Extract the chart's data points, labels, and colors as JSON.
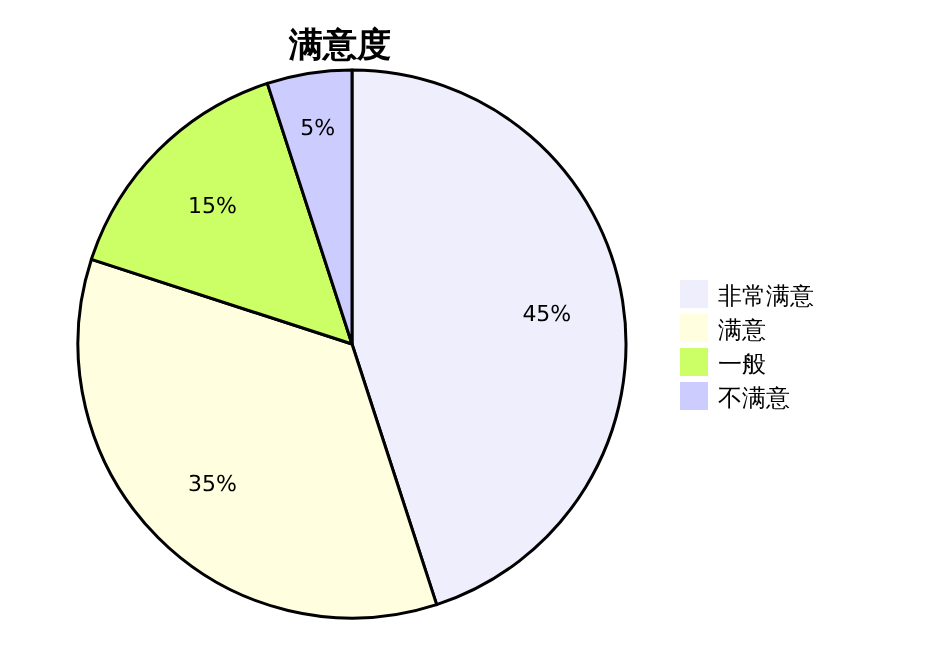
{
  "chart_data": {
    "type": "pie",
    "title": "满意度",
    "categories": [
      "非常满意",
      "满意",
      "一般",
      "不满意"
    ],
    "values": [
      45,
      35,
      15,
      5
    ],
    "colors": [
      "#eeeefc",
      "#ffffe0",
      "#ccff66",
      "#ccccff"
    ],
    "value_labels": [
      "45%",
      "35%",
      "15%",
      "5%"
    ],
    "legend": "right"
  }
}
